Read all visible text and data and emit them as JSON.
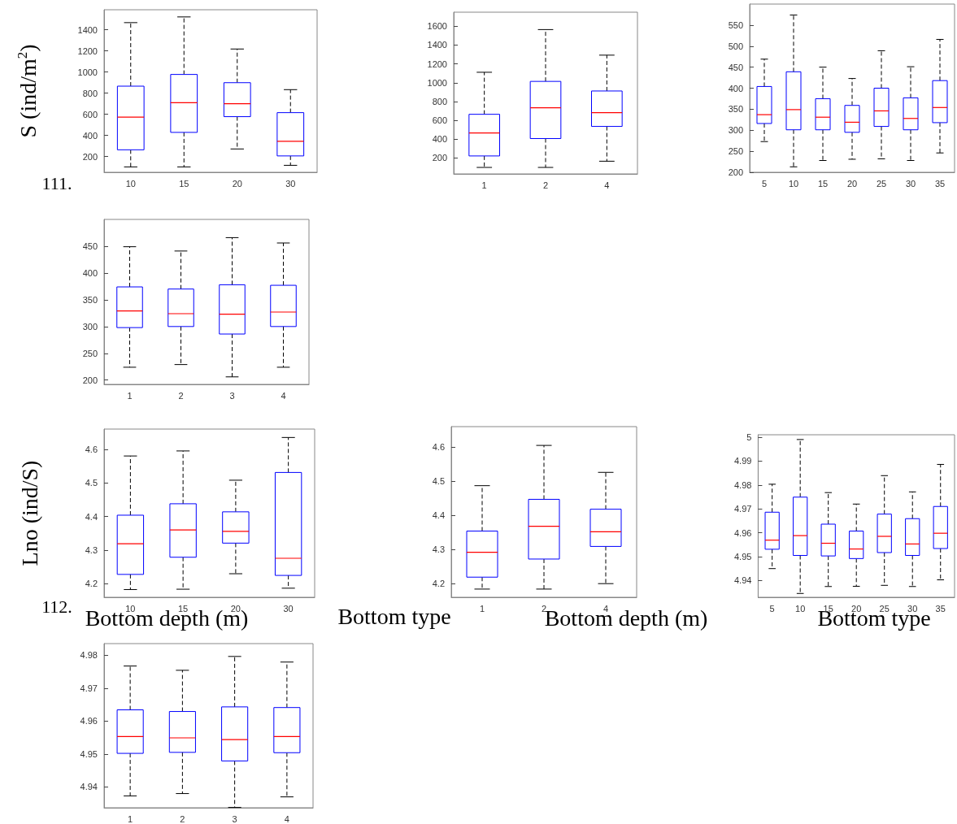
{
  "chart_data": [
    {
      "type": "box",
      "ylabel": "S (ind/m$^{2}$)",
      "annotations": [
        "111."
      ],
      "categories": [
        "10",
        "15",
        "20",
        "30"
      ],
      "ylim": [
        50,
        1590
      ],
      "yticks": [
        200,
        400,
        600,
        800,
        1000,
        1200,
        1400
      ],
      "series": [
        {
          "color": "#0000ff",
          "boxes": [
            {
              "low": 101,
              "q1": 263,
              "median": 572,
              "q3": 866,
              "high": 1468
            },
            {
              "low": 101,
              "q1": 428,
              "median": 709,
              "q3": 977,
              "high": 1522
            },
            {
              "low": 271,
              "q1": 577,
              "median": 699,
              "q3": 899,
              "high": 1218
            },
            {
              "low": 116,
              "q1": 205,
              "median": 344,
              "q3": 615,
              "high": 833
            }
          ]
        }
      ]
    },
    {
      "type": "box",
      "categories": [
        "1",
        "2",
        "4"
      ],
      "ylim": [
        30,
        1750
      ],
      "yticks": [
        200,
        400,
        600,
        800,
        1000,
        1200,
        1400,
        1600
      ],
      "series": [
        {
          "color": "#0000ff",
          "boxes": [
            {
              "low": 99,
              "q1": 221,
              "median": 465,
              "q3": 664,
              "high": 1111
            },
            {
              "low": 99,
              "q1": 406,
              "median": 734,
              "q3": 1014,
              "high": 1565
            },
            {
              "low": 165,
              "q1": 535,
              "median": 682,
              "q3": 912,
              "high": 1293
            }
          ]
        }
      ]
    },
    {
      "type": "box",
      "categories": [
        "5",
        "10",
        "15",
        "20",
        "25",
        "30",
        "35"
      ],
      "ylim": [
        200,
        600
      ],
      "yticks": [
        200,
        250,
        300,
        350,
        400,
        450,
        500,
        550
      ],
      "series": [
        {
          "color": "#0000ff",
          "boxes": [
            {
              "low": 273,
              "q1": 316,
              "median": 337,
              "q3": 404,
              "high": 469
            },
            {
              "low": 213,
              "q1": 301,
              "median": 349,
              "q3": 439,
              "high": 574
            },
            {
              "low": 228,
              "q1": 301,
              "median": 331,
              "q3": 375,
              "high": 450
            },
            {
              "low": 231,
              "q1": 295,
              "median": 319,
              "q3": 359,
              "high": 423
            },
            {
              "low": 232,
              "q1": 309,
              "median": 346,
              "q3": 400,
              "high": 489
            },
            {
              "low": 228,
              "q1": 301,
              "median": 328,
              "q3": 377,
              "high": 451
            },
            {
              "low": 246,
              "q1": 318,
              "median": 354,
              "q3": 418,
              "high": 516
            }
          ]
        }
      ]
    },
    {
      "type": "box",
      "categories": [
        "1",
        "2",
        "3",
        "4"
      ],
      "ylim": [
        192,
        500
      ],
      "yticks": [
        200,
        250,
        300,
        350,
        400,
        450
      ],
      "series": [
        {
          "color": "#0000ff",
          "boxes": [
            {
              "low": 224,
              "q1": 298,
              "median": 329,
              "q3": 374,
              "high": 449
            },
            {
              "low": 229,
              "q1": 300,
              "median": 324,
              "q3": 370,
              "high": 441
            },
            {
              "low": 206,
              "q1": 286,
              "median": 323,
              "q3": 378,
              "high": 466
            },
            {
              "low": 224,
              "q1": 300,
              "median": 327,
              "q3": 377,
              "high": 456
            }
          ]
        }
      ]
    },
    {
      "type": "box",
      "ylabel": "Lno (ind/S)",
      "xlabel": "Bottom depth (m)",
      "annotations": [
        "112."
      ],
      "categories": [
        "10",
        "15",
        "20",
        "30"
      ],
      "ylim": [
        4.16,
        4.66
      ],
      "yticks": [
        4.2,
        4.3,
        4.4,
        4.5,
        4.6
      ],
      "series": [
        {
          "color": "#0000ff",
          "boxes": [
            {
              "low": 4.183,
              "q1": 4.228,
              "median": 4.319,
              "q3": 4.404,
              "high": 4.58
            },
            {
              "low": 4.184,
              "q1": 4.279,
              "median": 4.36,
              "q3": 4.438,
              "high": 4.595
            },
            {
              "low": 4.23,
              "q1": 4.321,
              "median": 4.356,
              "q3": 4.414,
              "high": 4.508
            },
            {
              "low": 4.187,
              "q1": 4.225,
              "median": 4.276,
              "q3": 4.531,
              "high": 4.635
            }
          ]
        }
      ]
    },
    {
      "type": "box",
      "xlabel": "Bottom depth (m)",
      "annotations": [
        "Bottom type"
      ],
      "categories": [
        "1",
        "2",
        "4"
      ],
      "ylim": [
        4.16,
        4.66
      ],
      "yticks": [
        4.2,
        4.3,
        4.4,
        4.5,
        4.6
      ],
      "series": [
        {
          "color": "#0000ff",
          "boxes": [
            {
              "low": 4.184,
              "q1": 4.219,
              "median": 4.292,
              "q3": 4.354,
              "high": 4.487
            },
            {
              "low": 4.184,
              "q1": 4.272,
              "median": 4.368,
              "q3": 4.447,
              "high": 4.605
            },
            {
              "low": 4.2,
              "q1": 4.309,
              "median": 4.352,
              "q3": 4.418,
              "high": 4.526
            }
          ]
        }
      ]
    },
    {
      "type": "box",
      "xlabel": "Bottom type",
      "categories": [
        "5",
        "10",
        "15",
        "20",
        "25",
        "30",
        "35"
      ],
      "ylim": [
        4.933,
        5.001
      ],
      "yticks": [
        4.94,
        4.95,
        4.96,
        4.97,
        4.98,
        4.99,
        5
      ],
      "series": [
        {
          "color": "#0000ff",
          "boxes": [
            {
              "low": 4.945,
              "q1": 4.9531,
              "median": 4.9569,
              "q3": 4.9686,
              "high": 4.9803
            },
            {
              "low": 4.9346,
              "q1": 4.9505,
              "median": 4.9588,
              "q3": 4.9749,
              "high": 4.999
            },
            {
              "low": 4.9375,
              "q1": 4.9503,
              "median": 4.9556,
              "q3": 4.9636,
              "high": 4.9768
            },
            {
              "low": 4.9376,
              "q1": 4.9492,
              "median": 4.9532,
              "q3": 4.9607,
              "high": 4.972
            },
            {
              "low": 4.938,
              "q1": 4.9517,
              "median": 4.9585,
              "q3": 4.9678,
              "high": 4.9839
            },
            {
              "low": 4.9375,
              "q1": 4.9505,
              "median": 4.9553,
              "q3": 4.9659,
              "high": 4.9771
            },
            {
              "low": 4.9403,
              "q1": 4.9534,
              "median": 4.9598,
              "q3": 4.971,
              "high": 4.9886
            }
          ]
        }
      ]
    },
    {
      "type": "box",
      "categories": [
        "1",
        "2",
        "3",
        "4"
      ],
      "ylim": [
        4.9337,
        4.9835
      ],
      "yticks": [
        4.94,
        4.95,
        4.96,
        4.97,
        4.98
      ],
      "series": [
        {
          "color": "#0000ff",
          "boxes": [
            {
              "low": 4.9373,
              "q1": 4.9502,
              "median": 4.9553,
              "q3": 4.9634,
              "high": 4.9767
            },
            {
              "low": 4.938,
              "q1": 4.9505,
              "median": 4.9549,
              "q3": 4.9629,
              "high": 4.9754
            },
            {
              "low": 4.9338,
              "q1": 4.9479,
              "median": 4.9544,
              "q3": 4.9643,
              "high": 4.9796
            },
            {
              "low": 4.937,
              "q1": 4.9504,
              "median": 4.9553,
              "q3": 4.9641,
              "high": 4.9779
            }
          ]
        }
      ]
    }
  ]
}
